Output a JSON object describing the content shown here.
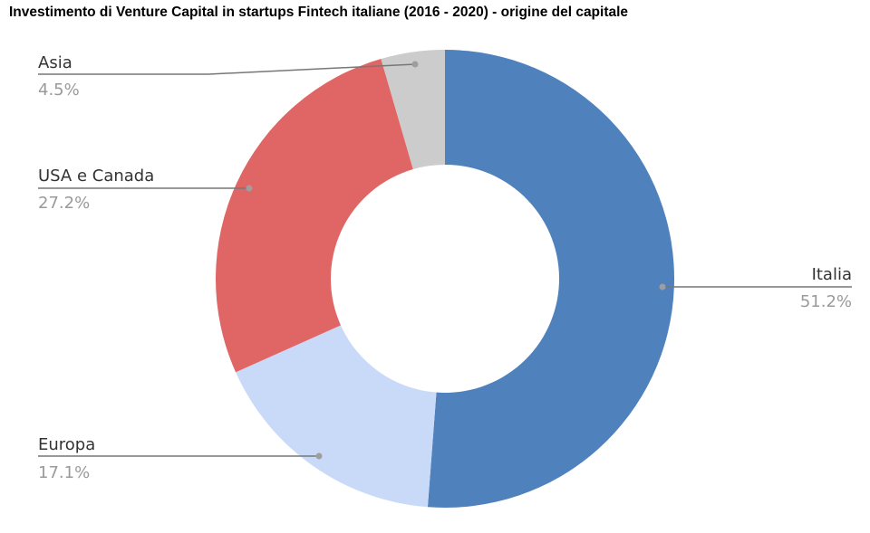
{
  "chart_data": {
    "type": "pie",
    "donut": true,
    "title": "Investimento di Venture Capital in startups Fintech italiane (2016 - 2020) - origine del capitale",
    "slices": [
      {
        "label": "Italia",
        "value": 51.2,
        "percent_label": "51.2%",
        "color": "#4f81bd"
      },
      {
        "label": "Europa",
        "value": 17.1,
        "percent_label": "17.1%",
        "color": "#c9daf8"
      },
      {
        "label": "USA e Canada",
        "value": 27.2,
        "percent_label": "27.2%",
        "color": "#e06666"
      },
      {
        "label": "Asia",
        "value": 4.5,
        "percent_label": "4.5%",
        "color": "#cccccc"
      }
    ],
    "start": "12 o'clock",
    "direction": "clockwise",
    "legend": "none"
  }
}
